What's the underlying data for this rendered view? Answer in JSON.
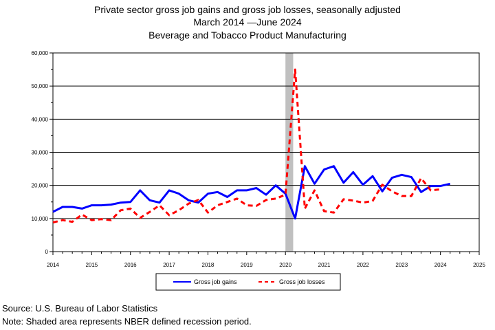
{
  "chart_data": {
    "type": "line",
    "title": "Private sector gross job gains and gross job losses, seasonally adjusted",
    "subtitle": "March 2014 —June 2024",
    "industry": "Beverage and Tobacco Product Manufacturing",
    "xlabel": "",
    "ylabel": "",
    "xlim": [
      2014,
      2025
    ],
    "ylim": [
      0,
      60000
    ],
    "x_ticks": [
      "2014",
      "2015",
      "2016",
      "2017",
      "2018",
      "2019",
      "2020",
      "2021",
      "2022",
      "2023",
      "2024",
      "2025"
    ],
    "y_ticks": [
      "0",
      "10,000",
      "20,000",
      "30,000",
      "40,000",
      "50,000",
      "60,000"
    ],
    "grid": true,
    "recession_shading": [
      2020.0,
      2020.2
    ],
    "legend": {
      "placement": "bottom",
      "entries": [
        "Gross job gains",
        "Gross job losses"
      ]
    },
    "x": [
      2014.0,
      2014.25,
      2014.5,
      2014.75,
      2015.0,
      2015.25,
      2015.5,
      2015.75,
      2016.0,
      2016.25,
      2016.5,
      2016.75,
      2017.0,
      2017.25,
      2017.5,
      2017.75,
      2018.0,
      2018.25,
      2018.5,
      2018.75,
      2019.0,
      2019.25,
      2019.5,
      2019.75,
      2020.0,
      2020.25,
      2020.5,
      2020.75,
      2021.0,
      2021.25,
      2021.5,
      2021.75,
      2022.0,
      2022.25,
      2022.5,
      2022.75,
      2023.0,
      2023.25,
      2023.5,
      2023.75,
      2024.0,
      2024.25
    ],
    "series": [
      {
        "name": "Gross job gains",
        "color": "#0000ff",
        "style": "solid",
        "values": [
          12000,
          13500,
          13500,
          13000,
          14000,
          14000,
          14200,
          14800,
          15000,
          18500,
          15500,
          14800,
          18500,
          17500,
          15500,
          14800,
          17500,
          18000,
          16500,
          18500,
          18500,
          19200,
          17200,
          20000,
          17500,
          10000,
          25800,
          20500,
          24800,
          25800,
          20800,
          24000,
          20200,
          22800,
          18200,
          22300,
          23200,
          22500,
          18000,
          19800,
          19800,
          20500
        ]
      },
      {
        "name": "Gross job losses",
        "color": "#ff0000",
        "style": "dashed",
        "values": [
          8800,
          9500,
          9000,
          11200,
          9500,
          9800,
          9500,
          12500,
          13000,
          10200,
          12000,
          14000,
          11000,
          12500,
          14500,
          15600,
          11800,
          14000,
          15000,
          16000,
          14000,
          13800,
          15600,
          16000,
          17200,
          55000,
          13000,
          18500,
          12200,
          11800,
          15800,
          15400,
          14800,
          15300,
          20200,
          18200,
          16800,
          16800,
          22200,
          18500,
          18800,
          null
        ]
      }
    ]
  },
  "footer": {
    "source": "Source: U.S. Bureau of Labor Statistics",
    "note": "Note: Shaded area represents NBER defined recession period."
  }
}
